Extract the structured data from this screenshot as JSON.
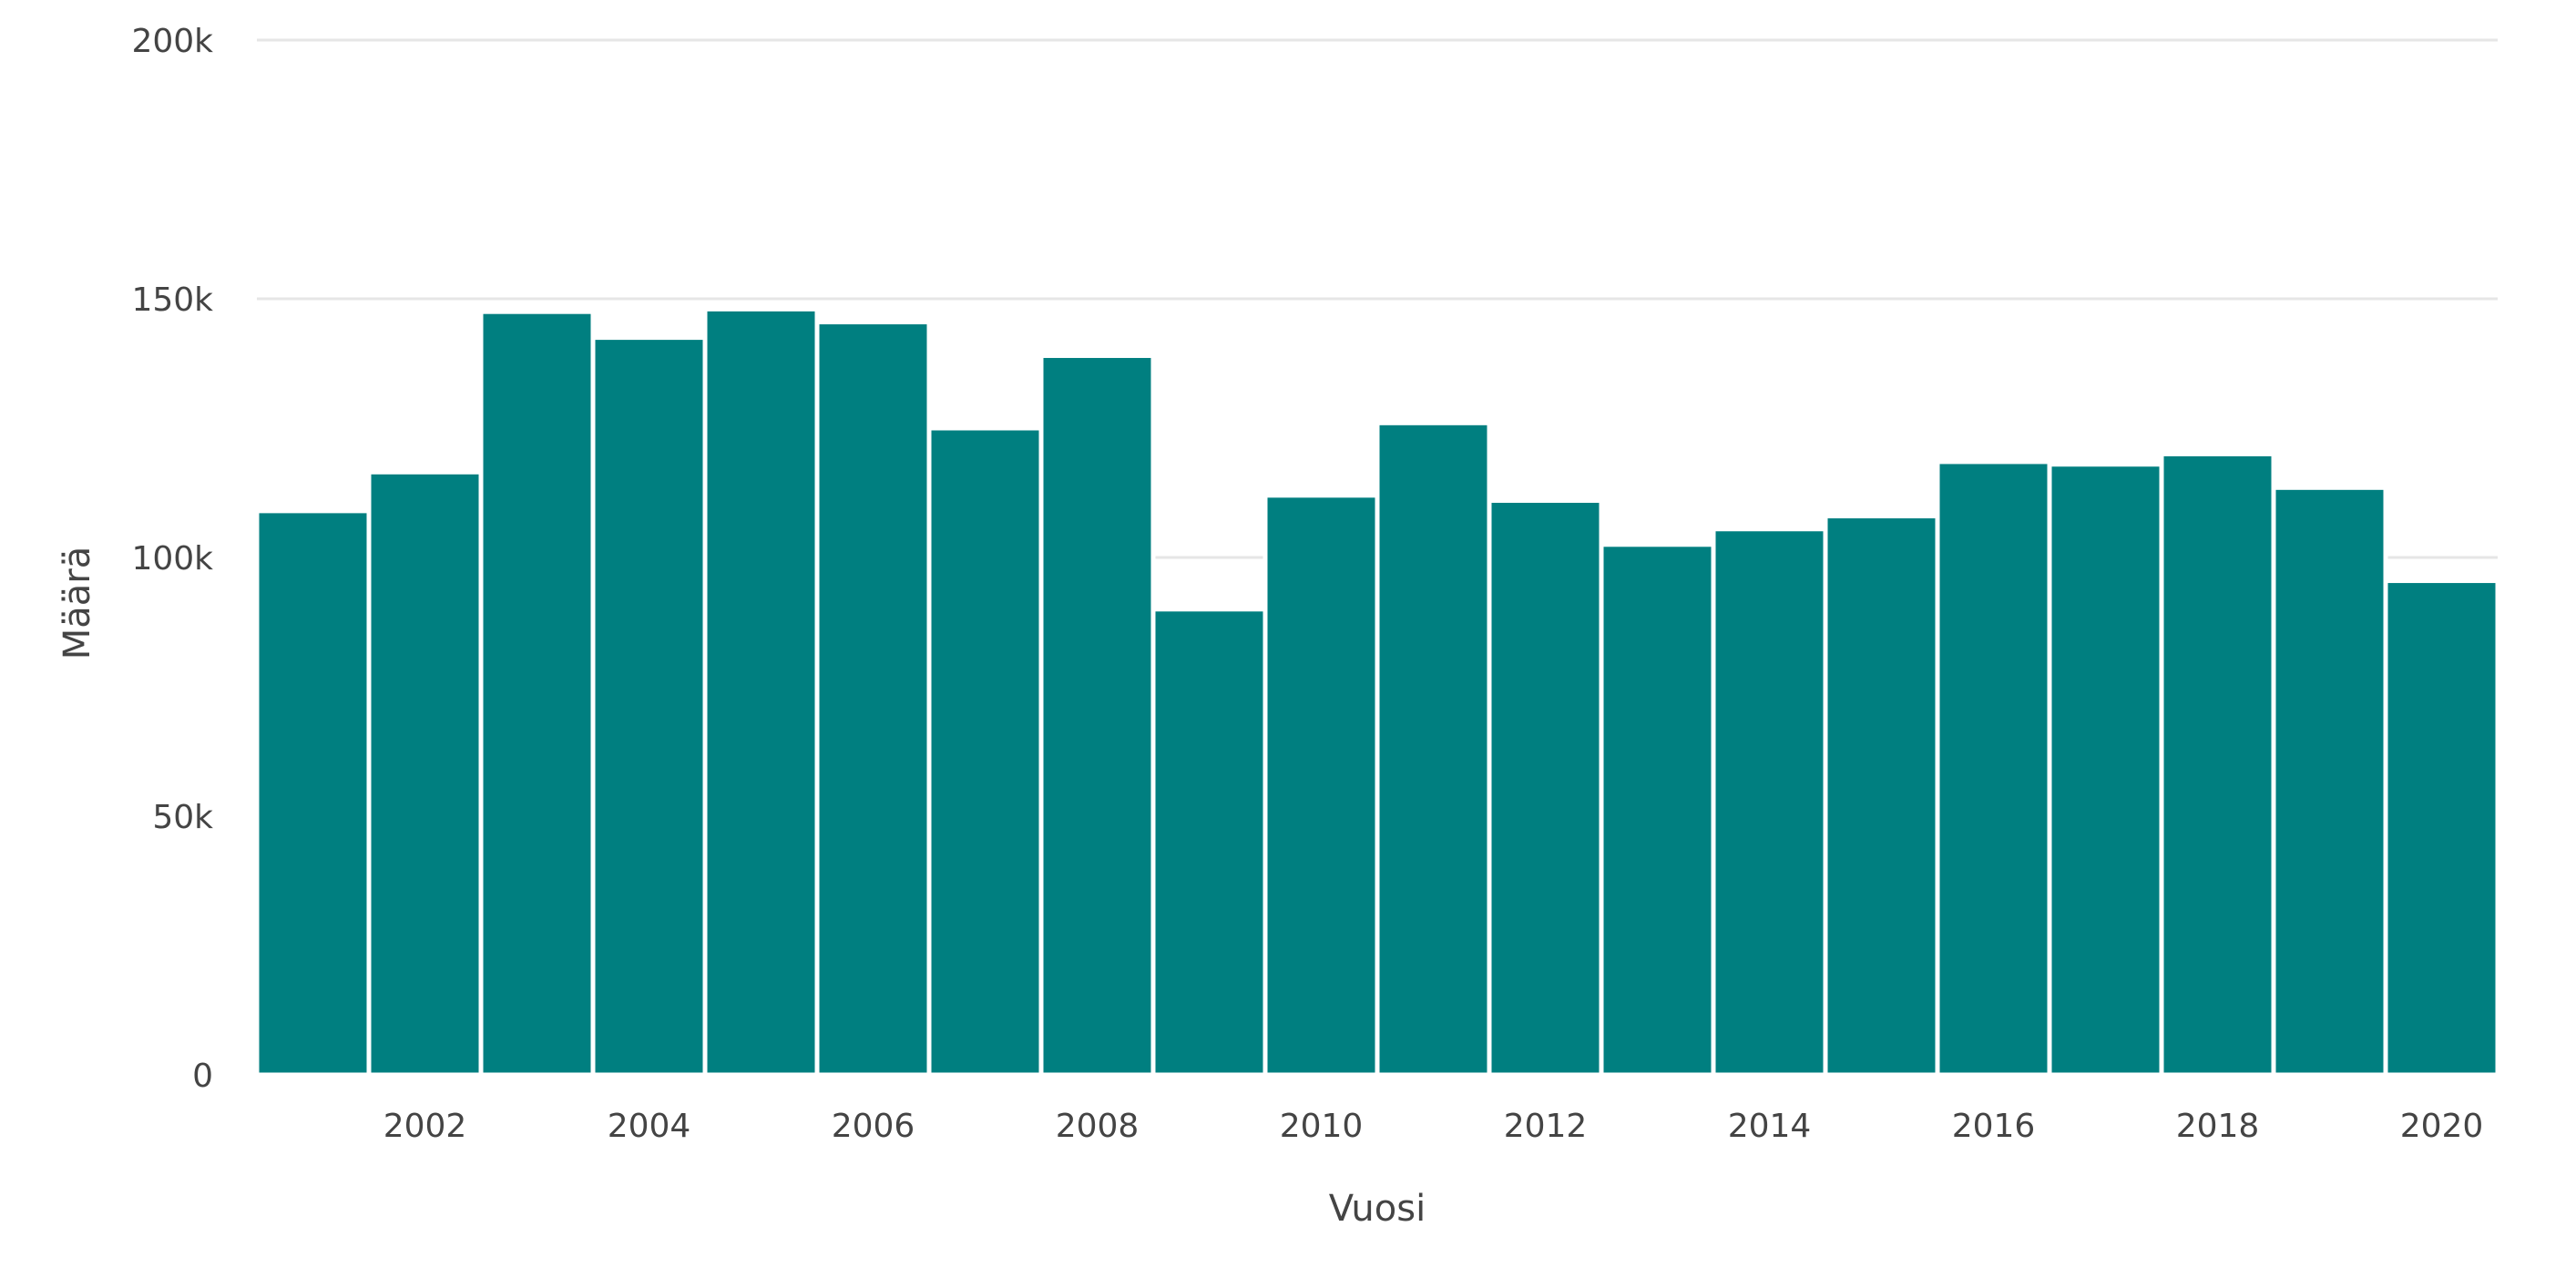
{
  "chart_data": {
    "type": "bar",
    "x": [
      2001,
      2002,
      2003,
      2004,
      2005,
      2006,
      2007,
      2008,
      2009,
      2010,
      2011,
      2012,
      2013,
      2014,
      2015,
      2016,
      2017,
      2018,
      2019,
      2020
    ],
    "values": [
      109000,
      116500,
      147500,
      142500,
      148000,
      145500,
      125000,
      139000,
      90000,
      112000,
      126000,
      111000,
      102500,
      105500,
      108000,
      118500,
      118000,
      120000,
      113500,
      95500
    ],
    "xlabel": "Vuosi",
    "ylabel": "Määrä",
    "ylim": [
      0,
      200000
    ],
    "y_ticks": [
      0,
      50000,
      100000,
      150000,
      200000
    ],
    "y_tick_labels": [
      "0",
      "50k",
      "100k",
      "150k",
      "200k"
    ],
    "x_ticks": [
      2002,
      2004,
      2006,
      2008,
      2010,
      2012,
      2014,
      2016,
      2018,
      2020
    ],
    "x_tick_labels": [
      "2002",
      "2004",
      "2006",
      "2008",
      "2010",
      "2012",
      "2014",
      "2016",
      "2018",
      "2020"
    ],
    "grid": true,
    "colors": {
      "bar": "#007f80",
      "grid": "#e6e6e6",
      "text": "#444444"
    }
  }
}
